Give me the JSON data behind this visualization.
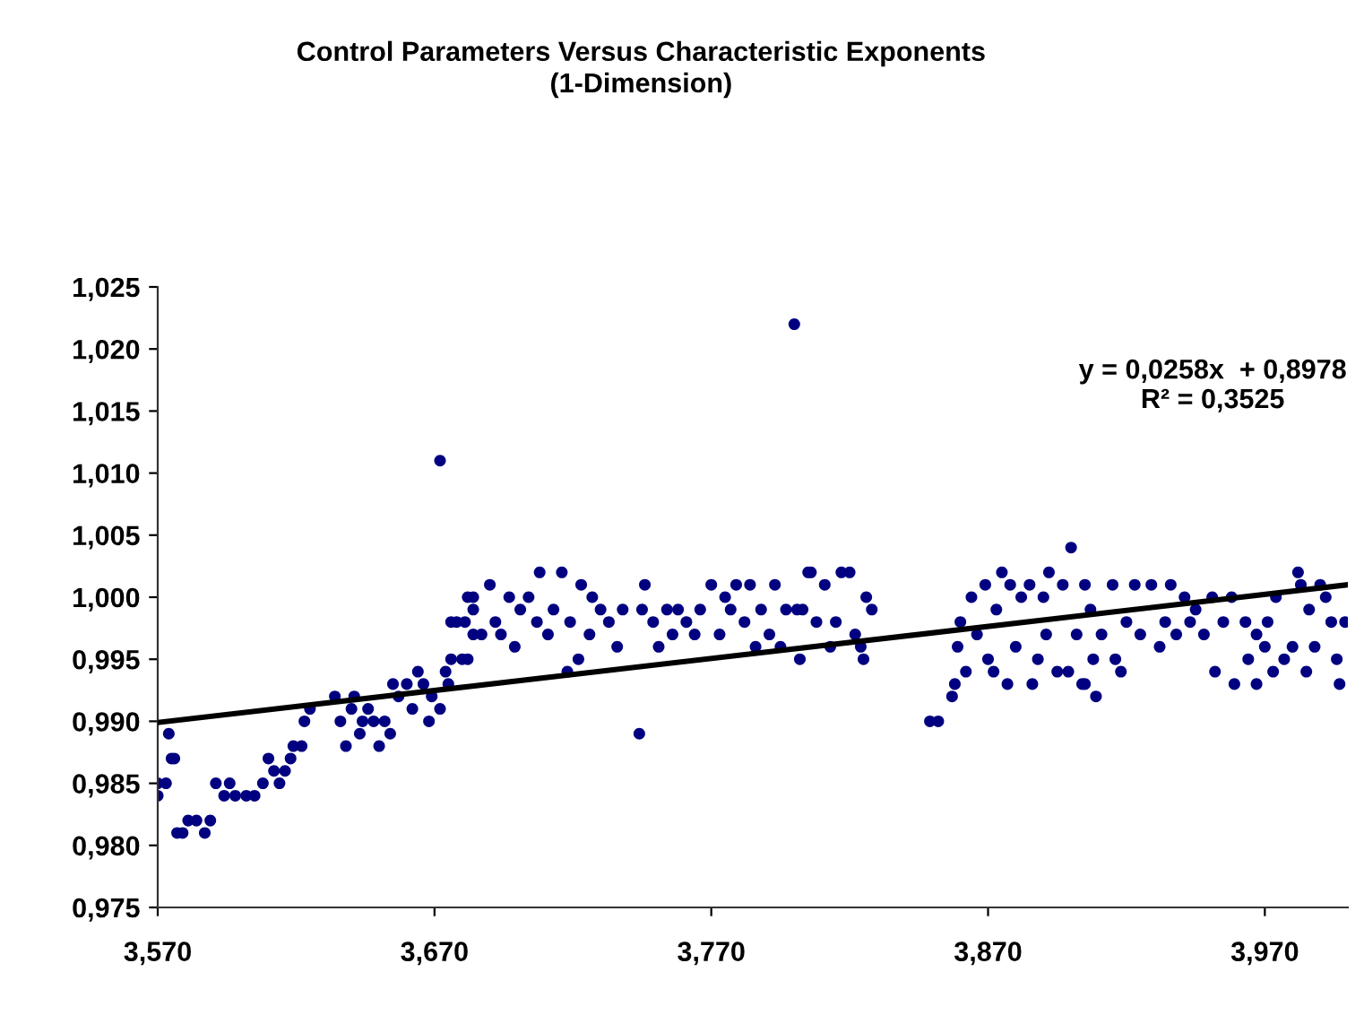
{
  "chart_data": {
    "type": "scatter",
    "title": "Control Parameters Versus Characteristic Exponents\n(1-Dimension)",
    "xlim": [
      3.57,
      4.0
    ],
    "xticks": [
      {
        "value": 3.57,
        "label": "3,570"
      },
      {
        "value": 3.67,
        "label": "3,670"
      },
      {
        "value": 3.77,
        "label": "3,770"
      },
      {
        "value": 3.87,
        "label": "3,870"
      },
      {
        "value": 3.97,
        "label": "3,970"
      }
    ],
    "ylim": [
      0.975,
      1.025
    ],
    "yticks": [
      {
        "value": 0.975,
        "label": "0,975"
      },
      {
        "value": 0.98,
        "label": "0,980"
      },
      {
        "value": 0.985,
        "label": "0,985"
      },
      {
        "value": 0.99,
        "label": "0,990"
      },
      {
        "value": 0.995,
        "label": "0,995"
      },
      {
        "value": 1.0,
        "label": "1,000"
      },
      {
        "value": 1.005,
        "label": "1,005"
      },
      {
        "value": 1.01,
        "label": "1,010"
      },
      {
        "value": 1.015,
        "label": "1,015"
      },
      {
        "value": 1.02,
        "label": "1,020"
      },
      {
        "value": 1.025,
        "label": "1,025"
      }
    ],
    "grid": false,
    "legend": false,
    "marker": "circle",
    "annotations": [
      "y = 0,0258x  + 0,8978\nR² = 0,3525"
    ],
    "series": [
      {
        "color": "#000080",
        "x": [
          3.57,
          3.57,
          3.573,
          3.574,
          3.575,
          3.576,
          3.577,
          3.579,
          3.581,
          3.584,
          3.587,
          3.589,
          3.591,
          3.594,
          3.596,
          3.598,
          3.602,
          3.605,
          3.608,
          3.61,
          3.612,
          3.614,
          3.616,
          3.618,
          3.619,
          3.622,
          3.623,
          3.625,
          3.634,
          3.636,
          3.638,
          3.64,
          3.641,
          3.643,
          3.644,
          3.646,
          3.648,
          3.65,
          3.652,
          3.654,
          3.655,
          3.657,
          3.66,
          3.662,
          3.664,
          3.666,
          3.668,
          3.669,
          3.672,
          3.672,
          3.674,
          3.675,
          3.676,
          3.678,
          3.681,
          3.682,
          3.684,
          3.684,
          3.676,
          3.68,
          3.682,
          3.684,
          3.687,
          3.69,
          3.692,
          3.694,
          3.697,
          3.699,
          3.701,
          3.704,
          3.707,
          3.708,
          3.711,
          3.713,
          3.716,
          3.718,
          3.719,
          3.722,
          3.723,
          3.726,
          3.727,
          3.73,
          3.733,
          3.736,
          3.738,
          3.744,
          3.745,
          3.746,
          3.749,
          3.751,
          3.754,
          3.756,
          3.758,
          3.761,
          3.764,
          3.766,
          3.77,
          3.773,
          3.775,
          3.777,
          3.779,
          3.782,
          3.784,
          3.786,
          3.788,
          3.791,
          3.793,
          3.795,
          3.8,
          3.801,
          3.802,
          3.805,
          3.797,
          3.803,
          3.806,
          3.808,
          3.811,
          3.813,
          3.815,
          3.817,
          3.82,
          3.822,
          3.824,
          3.825,
          3.826,
          3.828,
          3.849,
          3.852,
          3.857,
          3.858,
          3.859,
          3.86,
          3.862,
          3.864,
          3.866,
          3.869,
          3.87,
          3.872,
          3.873,
          3.875,
          3.877,
          3.878,
          3.88,
          3.882,
          3.885,
          3.886,
          3.888,
          3.89,
          3.891,
          3.892,
          3.895,
          3.897,
          3.899,
          3.9,
          3.902,
          3.904,
          3.905,
          3.905,
          3.907,
          3.908,
          3.909,
          3.911,
          3.915,
          3.916,
          3.918,
          3.92,
          3.923,
          3.925,
          3.929,
          3.932,
          3.934,
          3.936,
          3.938,
          3.941,
          3.943,
          3.945,
          3.948,
          3.951,
          3.952,
          3.955,
          3.958,
          3.959,
          3.963,
          3.964,
          3.967,
          3.967,
          3.97,
          3.971,
          3.973,
          3.974,
          3.977,
          3.98,
          3.982,
          3.983,
          3.985,
          3.986,
          3.988,
          3.99,
          3.992,
          3.994,
          3.996,
          3.997,
          3.999
        ],
        "values": [
          0.984,
          0.985,
          0.985,
          0.989,
          0.987,
          0.987,
          0.981,
          0.981,
          0.982,
          0.982,
          0.981,
          0.982,
          0.985,
          0.984,
          0.985,
          0.984,
          0.984,
          0.984,
          0.985,
          0.987,
          0.986,
          0.985,
          0.986,
          0.987,
          0.988,
          0.988,
          0.99,
          0.991,
          0.992,
          0.99,
          0.988,
          0.991,
          0.992,
          0.989,
          0.99,
          0.991,
          0.99,
          0.988,
          0.99,
          0.989,
          0.993,
          0.992,
          0.993,
          0.991,
          0.994,
          0.993,
          0.99,
          0.992,
          1.011,
          0.991,
          0.994,
          0.993,
          0.995,
          0.998,
          0.998,
          0.995,
          1.0,
          0.997,
          0.998,
          0.995,
          1.0,
          0.999,
          0.997,
          1.001,
          0.998,
          0.997,
          1.0,
          0.996,
          0.999,
          1.0,
          0.998,
          1.002,
          0.997,
          0.999,
          1.002,
          0.994,
          0.998,
          0.995,
          1.001,
          0.997,
          1.0,
          0.999,
          0.998,
          0.996,
          0.999,
          0.989,
          0.999,
          1.001,
          0.998,
          0.996,
          0.999,
          0.997,
          0.999,
          0.998,
          0.997,
          0.999,
          1.001,
          0.997,
          1.0,
          0.999,
          1.001,
          0.998,
          1.001,
          0.996,
          0.999,
          0.997,
          1.001,
          0.996,
          1.022,
          0.999,
          0.995,
          1.002,
          0.999,
          0.999,
          1.002,
          0.998,
          1.001,
          0.996,
          0.998,
          1.002,
          1.002,
          0.997,
          0.996,
          0.995,
          1.0,
          0.999,
          0.99,
          0.99,
          0.992,
          0.993,
          0.996,
          0.998,
          0.994,
          1.0,
          0.997,
          1.001,
          0.995,
          0.994,
          0.999,
          1.002,
          0.993,
          1.001,
          0.996,
          1.0,
          1.001,
          0.993,
          0.995,
          1.0,
          0.997,
          1.002,
          0.994,
          1.001,
          0.994,
          1.004,
          0.997,
          0.993,
          1.001,
          0.993,
          0.999,
          0.995,
          0.992,
          0.997,
          1.001,
          0.995,
          0.994,
          0.998,
          1.001,
          0.997,
          1.001,
          0.996,
          0.998,
          1.001,
          0.997,
          1.0,
          0.998,
          0.999,
          0.997,
          1.0,
          0.994,
          0.998,
          1.0,
          0.993,
          0.998,
          0.995,
          0.993,
          0.997,
          0.996,
          0.998,
          0.994,
          1.0,
          0.995,
          0.996,
          1.002,
          1.001,
          0.994,
          0.999,
          0.996,
          1.001,
          1.0,
          0.998,
          0.995,
          0.993,
          0.998
        ]
      },
      {
        "type": "line",
        "color": "#000000",
        "marker": "none",
        "line_style": "solid",
        "x": [
          3.57,
          4.0
        ],
        "values": [
          0.9899,
          1.001
        ]
      }
    ]
  }
}
